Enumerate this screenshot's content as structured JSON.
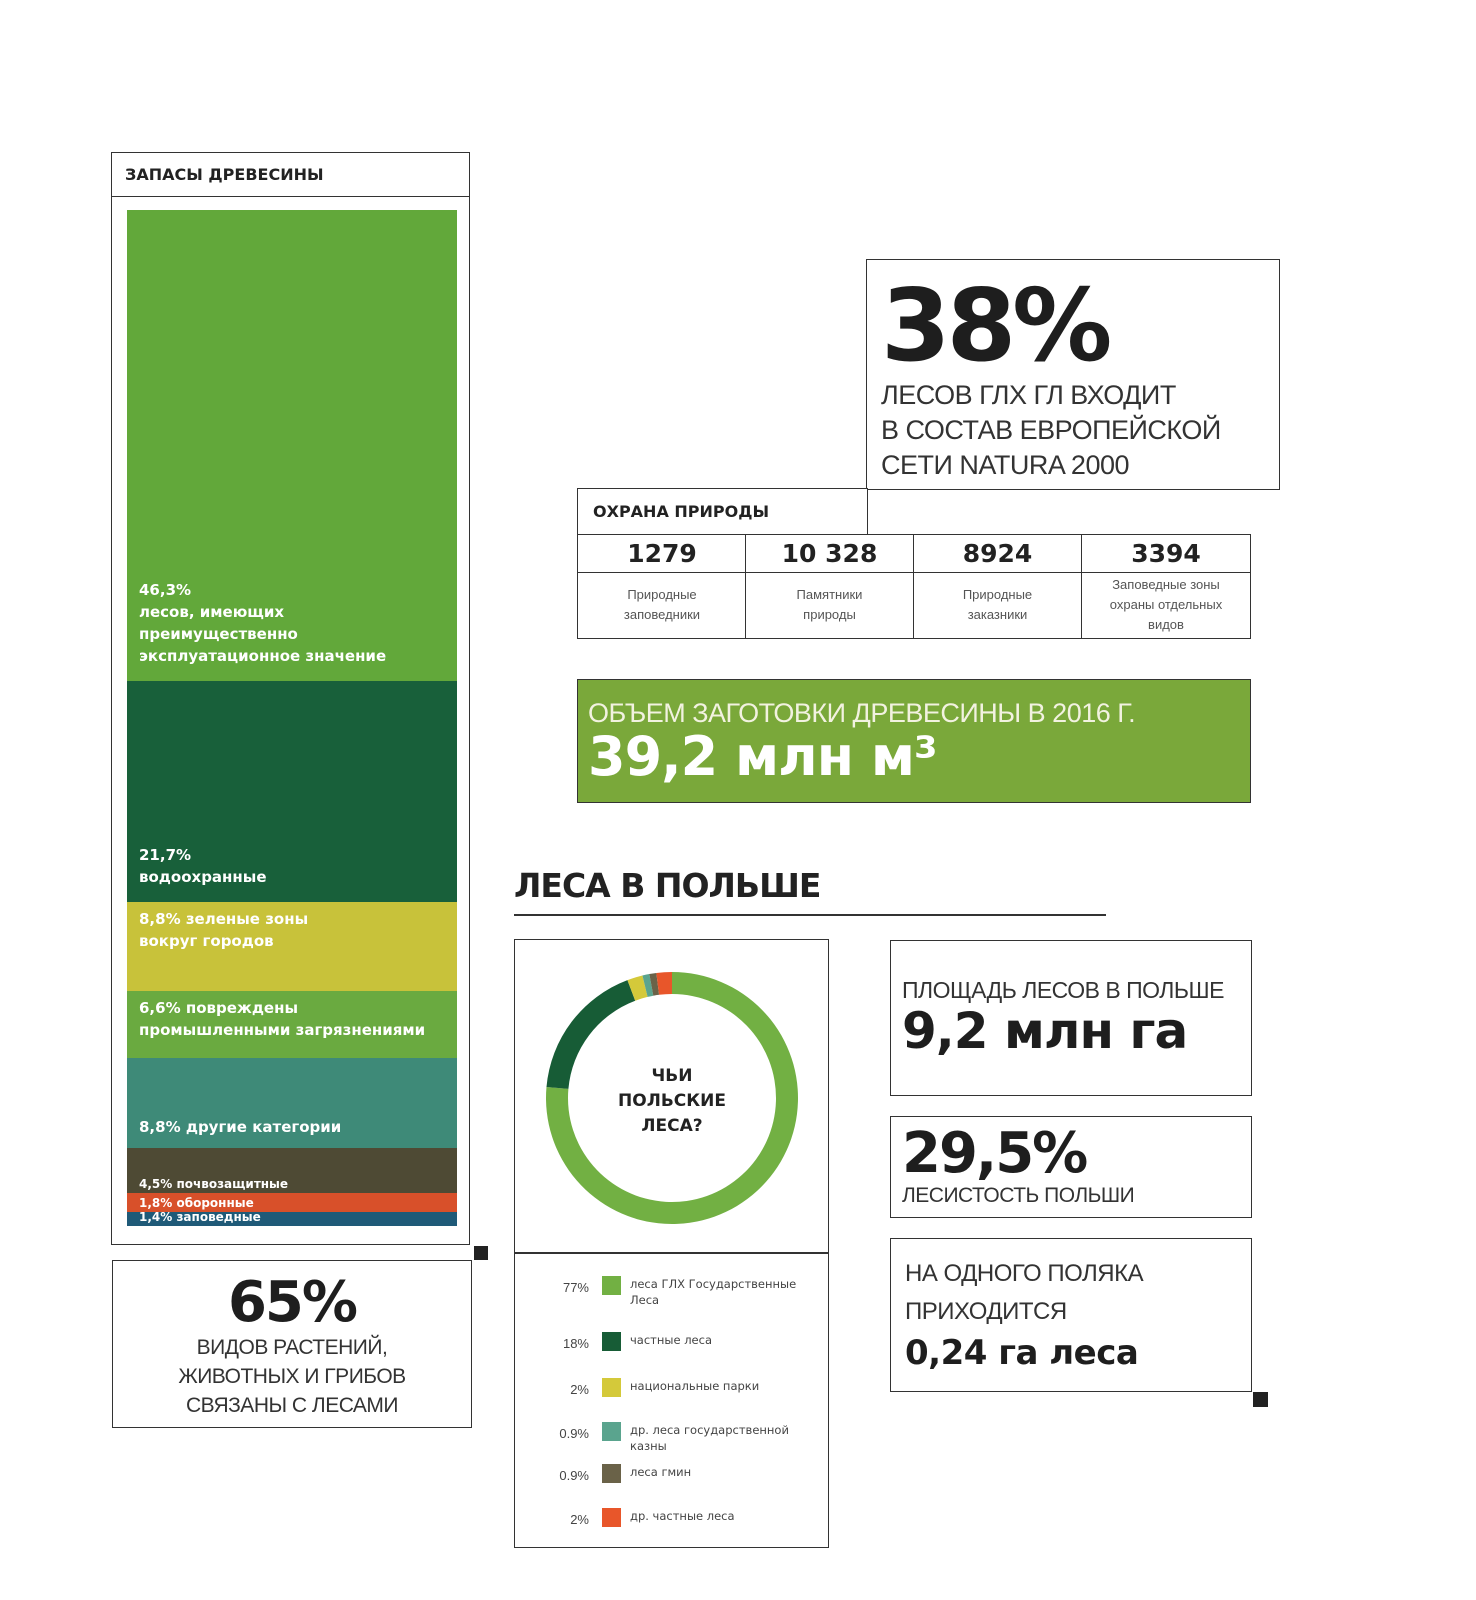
{
  "timber": {
    "title": "ЗАПАСЫ ДРЕВЕСИНЫ"
  },
  "chart_data": [
    {
      "type": "bar",
      "title": "ЗАПАСЫ ДРЕВЕСИНЫ",
      "stacked": true,
      "unit": "%",
      "segments": [
        {
          "value": 46.3,
          "label": "46,3%\nлесов, имеющих\nпреимущественно\nэксплуатационное значение",
          "color": "#62a83a"
        },
        {
          "value": 21.7,
          "label": "21,7%\nводоохранные",
          "color": "#18603a"
        },
        {
          "value": 8.8,
          "label": "8,8% зеленые зоны\nвокруг городов",
          "color": "#c8c23a"
        },
        {
          "value": 6.6,
          "label": "6,6% повреждены\nпромышленными загрязнениями",
          "color": "#6aaa40"
        },
        {
          "value": 8.8,
          "label": "8,8% другие категории",
          "color": "#3e8a78"
        },
        {
          "value": 4.5,
          "label": "4,5% почвозащитные",
          "color": "#4e4a34"
        },
        {
          "value": 1.8,
          "label": "1,8% оборонные",
          "color": "#d8502a"
        },
        {
          "value": 1.4,
          "label": "1,4% заповедные",
          "color": "#1f5a78"
        }
      ]
    },
    {
      "type": "pie",
      "donut": true,
      "title": "ЧЬИ\nПОЛЬСКИЕ\nЛЕСА?",
      "slices": [
        {
          "value": 77,
          "pct": "77%",
          "label": "леса ГЛХ Государственные Леса",
          "color": "#72b043"
        },
        {
          "value": 18,
          "pct": "18%",
          "label": "частные леса",
          "color": "#175c36"
        },
        {
          "value": 2,
          "pct": "2%",
          "label": "национальные парки",
          "color": "#d4c93a"
        },
        {
          "value": 0.9,
          "pct": "0.9%",
          "label": "др. леса государственной казны",
          "color": "#5aa48e"
        },
        {
          "value": 0.9,
          "pct": "0.9%",
          "label": "леса гмин",
          "color": "#6a6248"
        },
        {
          "value": 2,
          "pct": "2%",
          "label": "др. частные леса",
          "color": "#e8562a"
        }
      ]
    }
  ],
  "natura": {
    "value": "38%",
    "text": "ЛЕСОВ ГЛХ ГЛ ВХОДИТ\nВ СОСТАВ ЕВРОПЕЙСКОЙ\nСЕТИ NATURA 2000"
  },
  "protection": {
    "title": "ОХРАНА ПРИРОДЫ",
    "items": [
      {
        "number": "1279",
        "label": "Природные\nзаповедники"
      },
      {
        "number": "10 328",
        "label": "Памятники\nприроды"
      },
      {
        "number": "8924",
        "label": "Природные\nзаказники"
      },
      {
        "number": "3394",
        "label": "Заповедные зоны\nохраны отдельных\nвидов"
      }
    ]
  },
  "harvest": {
    "title": "ОБЪЕМ ЗАГОТОВКИ ДРЕВЕСИНЫ В 2016 Г.",
    "value": "39,2 млн м³",
    "color": "#7aa83a"
  },
  "species": {
    "value": "65%",
    "text": "ВИДОВ РАСТЕНИЙ,\nЖИВОТНЫХ И ГРИБОВ\nСВЯЗАНЫ С ЛЕСАМИ"
  },
  "poland": {
    "heading": "ЛЕСА В ПОЛЬШЕ",
    "area": {
      "label": "ПЛОЩАДЬ ЛЕСОВ В ПОЛЬШЕ",
      "value": "9,2 млн га"
    },
    "cover": {
      "value": "29,5%",
      "label": "ЛЕСИСТОСТЬ ПОЛЬШИ"
    },
    "per_capita": {
      "label": "НА ОДНОГО ПОЛЯКА\nПРИХОДИТСЯ",
      "value": "0,24 га леса"
    }
  }
}
